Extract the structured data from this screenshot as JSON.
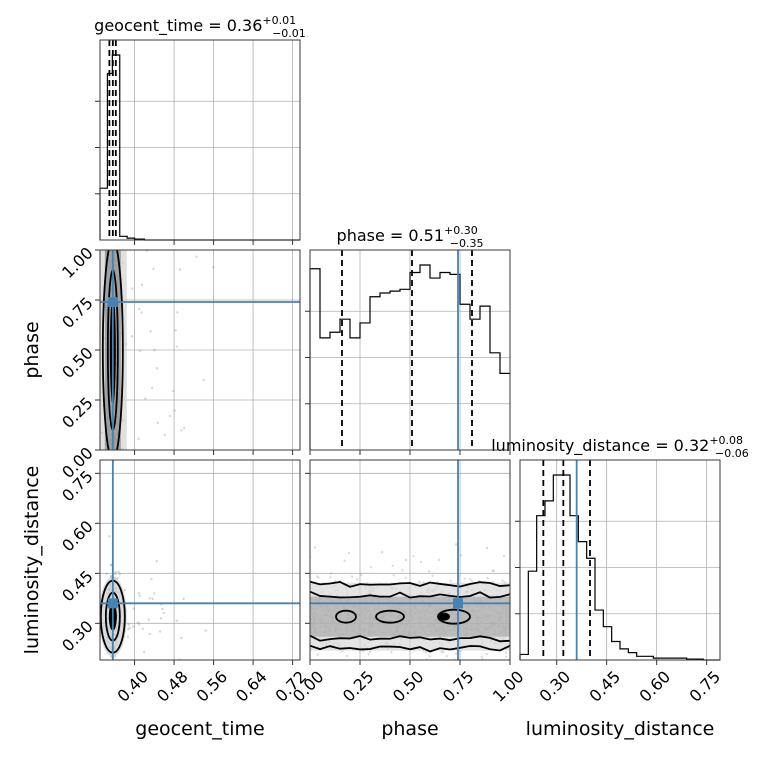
{
  "chart_data": {
    "type": "corner",
    "parameters": [
      "geocent_time",
      "phase",
      "luminosity_distance"
    ],
    "axis_labels": {
      "x": [
        "geocent_time",
        "phase",
        "luminosity_distance"
      ],
      "y": [
        "phase",
        "luminosity_distance"
      ]
    },
    "titles": [
      {
        "text": "geocent_time = 0.36",
        "plus": "+0.01",
        "minus": "−0.01"
      },
      {
        "text": "phase = 0.51",
        "plus": "+0.30",
        "minus": "−0.35"
      },
      {
        "text": "luminosity_distance = 0.32",
        "plus": "+0.08",
        "minus": "−0.06"
      }
    ],
    "ranges": {
      "geocent_time": [
        0.33,
        0.735
      ],
      "phase": [
        0.0,
        1.0
      ],
      "luminosity_distance": [
        0.19,
        0.79
      ]
    },
    "ticks": {
      "geocent_time": [
        0.4,
        0.48,
        0.56,
        0.64,
        0.72
      ],
      "phase": [
        0.0,
        0.25,
        0.5,
        0.75,
        1.0
      ],
      "luminosity_distance": [
        0.3,
        0.45,
        0.6,
        0.75
      ]
    },
    "tick_labels": {
      "geocent_time": [
        "0.40",
        "0.48",
        "0.56",
        "0.64",
        "0.72"
      ],
      "phase": [
        "0.00",
        "0.25",
        "0.50",
        "0.75",
        "1.00"
      ],
      "luminosity_distance": [
        "0.30",
        "0.45",
        "0.60",
        "0.75"
      ]
    },
    "truths": {
      "geocent_time": 0.356,
      "phase": 0.74,
      "luminosity_distance": 0.36
    },
    "quantiles": {
      "geocent_time": [
        0.349,
        0.356,
        0.362
      ],
      "phase": [
        0.16,
        0.51,
        0.81
      ],
      "luminosity_distance": [
        0.26,
        0.32,
        0.4
      ]
    },
    "marginals": {
      "geocent_time": {
        "edges": [
          0.33,
          0.345,
          0.355,
          0.37,
          0.385,
          0.4,
          0.42,
          0.735
        ],
        "counts": [
          0.28,
          0.9,
          1.0,
          0.02,
          0.01,
          0.005,
          0.0
        ]
      },
      "phase": {
        "edges": [
          0.0,
          0.05,
          0.1,
          0.15,
          0.2,
          0.25,
          0.3,
          0.35,
          0.4,
          0.45,
          0.5,
          0.55,
          0.6,
          0.65,
          0.7,
          0.75,
          0.8,
          0.85,
          0.9,
          0.95,
          1.0
        ],
        "counts": [
          0.97,
          0.6,
          0.63,
          0.7,
          0.6,
          0.68,
          0.82,
          0.84,
          0.85,
          0.86,
          0.95,
          0.99,
          0.92,
          0.95,
          0.94,
          0.78,
          0.7,
          0.77,
          0.52,
          0.41
        ]
      },
      "luminosity_distance": {
        "edges": [
          0.19,
          0.215,
          0.24,
          0.265,
          0.29,
          0.315,
          0.34,
          0.365,
          0.39,
          0.415,
          0.44,
          0.465,
          0.49,
          0.515,
          0.54,
          0.59,
          0.64,
          0.69,
          0.74,
          0.79
        ],
        "counts": [
          0.03,
          0.48,
          0.78,
          0.86,
          1.0,
          1.0,
          0.78,
          0.64,
          0.55,
          0.27,
          0.18,
          0.1,
          0.06,
          0.04,
          0.02,
          0.01,
          0.01,
          0.005,
          0.0
        ]
      }
    },
    "grid": true
  }
}
